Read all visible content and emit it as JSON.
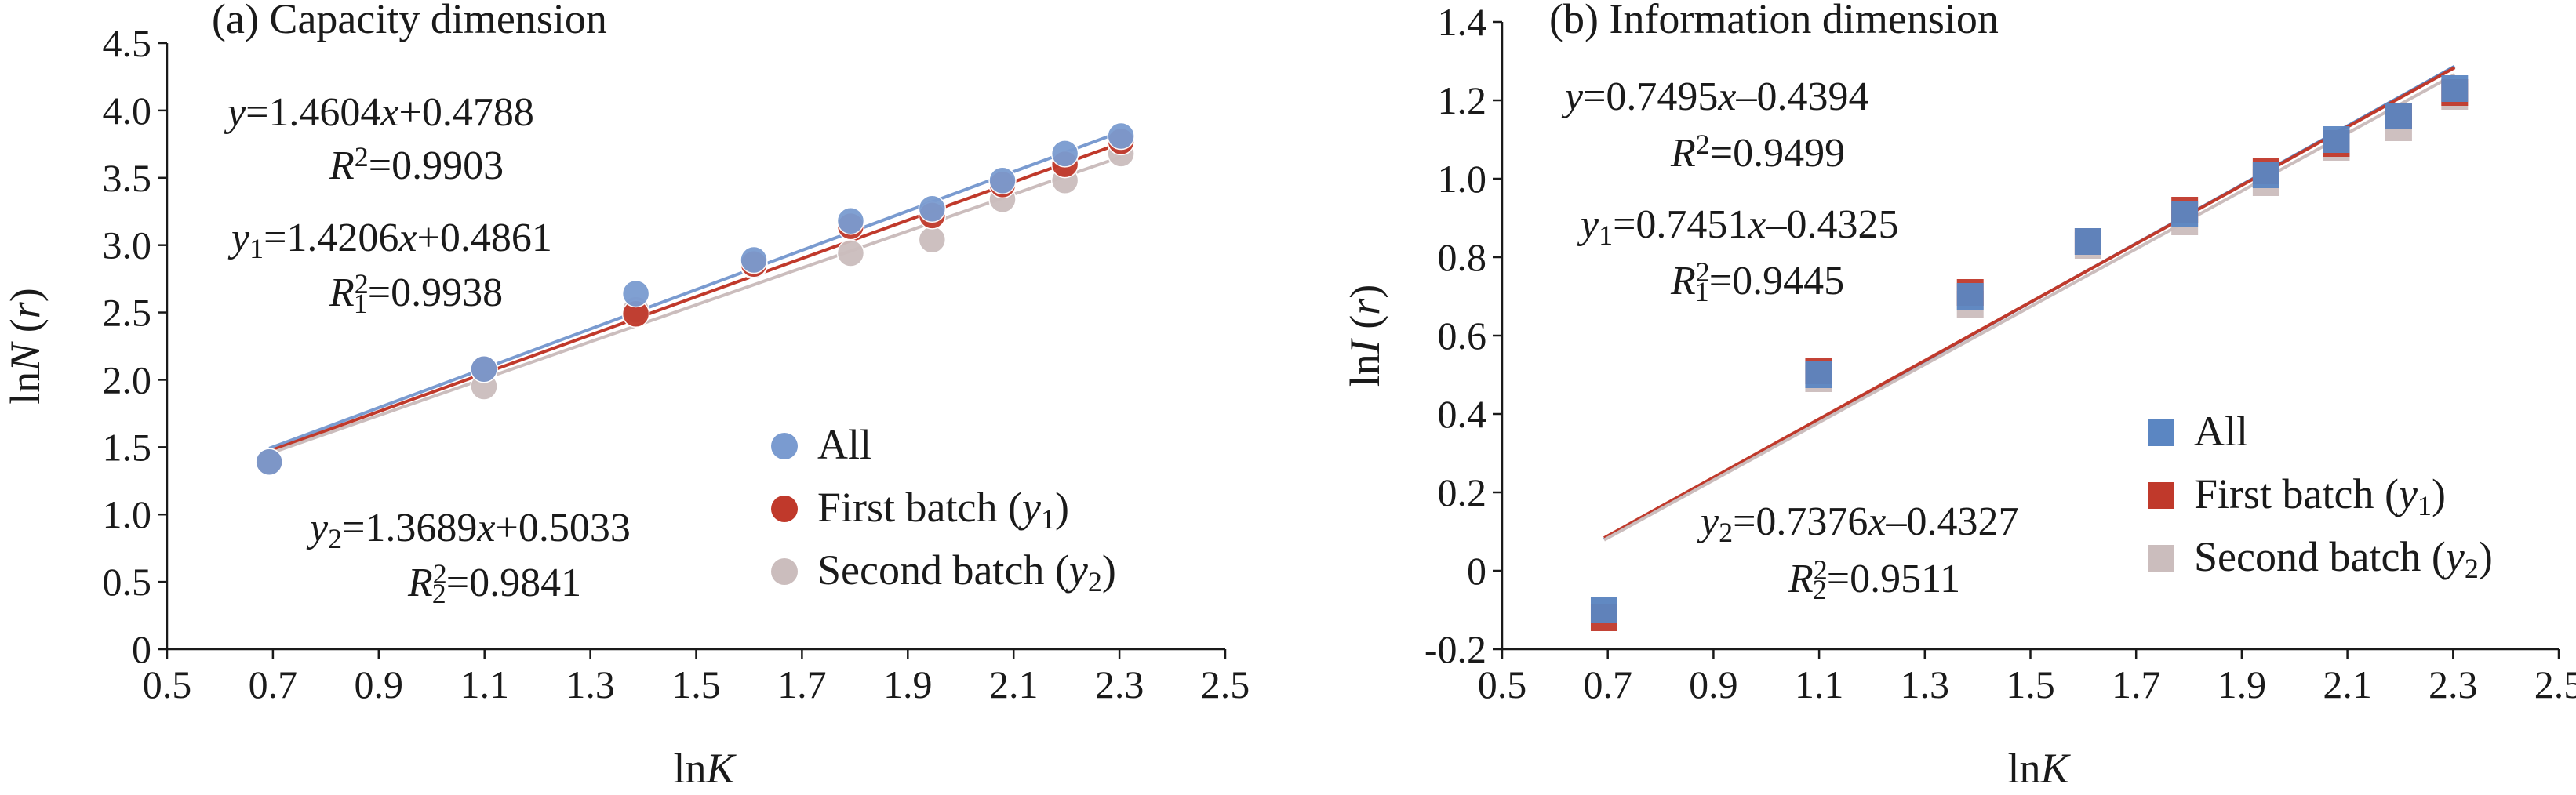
{
  "chart_data": [
    {
      "type": "scatter",
      "title": "(a) Capacity dimension",
      "xlabel": "lnK",
      "ylabel": "lnN (r)",
      "xlim": [
        0.5,
        2.5
      ],
      "ylim": [
        0,
        4.5
      ],
      "x_ticks": [
        "0.5",
        "0.7",
        "0.9",
        "1.1",
        "1.3",
        "1.5",
        "1.7",
        "1.9",
        "2.1",
        "2.3",
        "2.5"
      ],
      "y_ticks": [
        "0",
        "0.5",
        "1.0",
        "1.5",
        "2.0",
        "2.5",
        "3.0",
        "3.5",
        "4.0",
        "4.5"
      ],
      "marker": "circle",
      "grid": false,
      "legend_position": "bottom-right",
      "series": [
        {
          "name": "All",
          "color": "#7a9bd0",
          "x": [
            0.693,
            1.099,
            1.386,
            1.609,
            1.792,
            1.946,
            2.079,
            2.197,
            2.303
          ],
          "y": [
            1.39,
            2.08,
            2.64,
            2.89,
            3.18,
            3.27,
            3.48,
            3.68,
            3.81
          ],
          "fit": {
            "slope": 1.4604,
            "intercept": 0.4788,
            "x_range": [
              0.693,
              2.303
            ]
          },
          "equation": {
            "lhs": "y",
            "lhs_sub": "",
            "rhs": "=1.4604x+0.4788"
          },
          "r2": {
            "sub": "",
            "value": "=0.9903"
          }
        },
        {
          "name": "First batch (y1)",
          "color": "#c0392b",
          "x": [
            0.693,
            1.099,
            1.386,
            1.609,
            1.792,
            1.946,
            2.079,
            2.197,
            2.303
          ],
          "y": [
            1.39,
            2.08,
            2.49,
            2.86,
            3.14,
            3.22,
            3.45,
            3.6,
            3.77
          ],
          "fit": {
            "slope": 1.4206,
            "intercept": 0.4861,
            "x_range": [
              0.693,
              2.303
            ]
          },
          "equation": {
            "lhs": "y",
            "lhs_sub": "1",
            "rhs": "=1.4206x+0.4861"
          },
          "r2": {
            "sub": "1",
            "value": "=0.9938"
          }
        },
        {
          "name": "Second batch (y2)",
          "color": "#cbbdbd",
          "x": [
            0.693,
            1.099,
            1.386,
            1.609,
            1.792,
            1.946,
            2.079,
            2.197,
            2.303
          ],
          "y": [
            1.39,
            1.95,
            2.52,
            2.85,
            2.94,
            3.04,
            3.34,
            3.48,
            3.68
          ],
          "fit": {
            "slope": 1.3689,
            "intercept": 0.5033,
            "x_range": [
              0.693,
              2.303
            ]
          },
          "equation": {
            "lhs": "y",
            "lhs_sub": "2",
            "rhs": "=1.3689x+0.5033"
          },
          "r2": {
            "sub": "2",
            "value": "=0.9841"
          }
        }
      ]
    },
    {
      "type": "scatter",
      "title": "(b) Information dimension",
      "xlabel": "lnK",
      "ylabel": "lnI (r)",
      "xlim": [
        0.5,
        2.5
      ],
      "ylim": [
        -0.2,
        1.4
      ],
      "x_ticks": [
        "0.5",
        "0.7",
        "0.9",
        "1.1",
        "1.3",
        "1.5",
        "1.7",
        "1.9",
        "2.1",
        "2.3",
        "2.5"
      ],
      "y_ticks": [
        "-0.2",
        "0",
        "0.2",
        "0.4",
        "0.6",
        "0.8",
        "1.0",
        "1.2",
        "1.4"
      ],
      "marker": "square",
      "grid": false,
      "legend_position": "bottom-right",
      "series": [
        {
          "name": "All",
          "color": "#5b86c2",
          "x": [
            0.693,
            1.099,
            1.386,
            1.609,
            1.792,
            1.946,
            2.079,
            2.197,
            2.303
          ],
          "y": [
            -0.1,
            0.5,
            0.7,
            0.84,
            0.91,
            1.01,
            1.1,
            1.16,
            1.23
          ],
          "fit": {
            "slope": 0.7495,
            "intercept": -0.4394,
            "x_range": [
              0.693,
              2.303
            ]
          },
          "equation": {
            "lhs": "y",
            "lhs_sub": "",
            "rhs": "=0.7495x–0.4394"
          },
          "r2": {
            "sub": "",
            "value": "=0.9499"
          }
        },
        {
          "name": "First batch (y1)",
          "color": "#c0392b",
          "x": [
            0.693,
            1.099,
            1.386,
            1.609,
            1.792,
            1.946,
            2.079,
            2.197,
            2.303
          ],
          "y": [
            -0.12,
            0.51,
            0.71,
            0.84,
            0.92,
            1.02,
            1.09,
            1.16,
            1.22
          ],
          "fit": {
            "slope": 0.7451,
            "intercept": -0.4325,
            "x_range": [
              0.693,
              2.303
            ]
          },
          "equation": {
            "lhs": "y",
            "lhs_sub": "1",
            "rhs": "=0.7451x–0.4325"
          },
          "r2": {
            "sub": "1",
            "value": "=0.9445"
          }
        },
        {
          "name": "Second batch (y2)",
          "color": "#cbbdbd",
          "x": [
            0.693,
            1.099,
            1.386,
            1.609,
            1.792,
            1.946,
            2.079,
            2.197,
            2.303
          ],
          "y": [
            -0.1,
            0.49,
            0.68,
            0.83,
            0.89,
            0.99,
            1.08,
            1.13,
            1.21
          ],
          "fit": {
            "slope": 0.7376,
            "intercept": -0.4327,
            "x_range": [
              0.693,
              2.303
            ]
          },
          "equation": {
            "lhs": "y",
            "lhs_sub": "2",
            "rhs": "=0.7376x–0.4327"
          },
          "r2": {
            "sub": "2",
            "value": "=0.9511"
          }
        }
      ]
    }
  ]
}
